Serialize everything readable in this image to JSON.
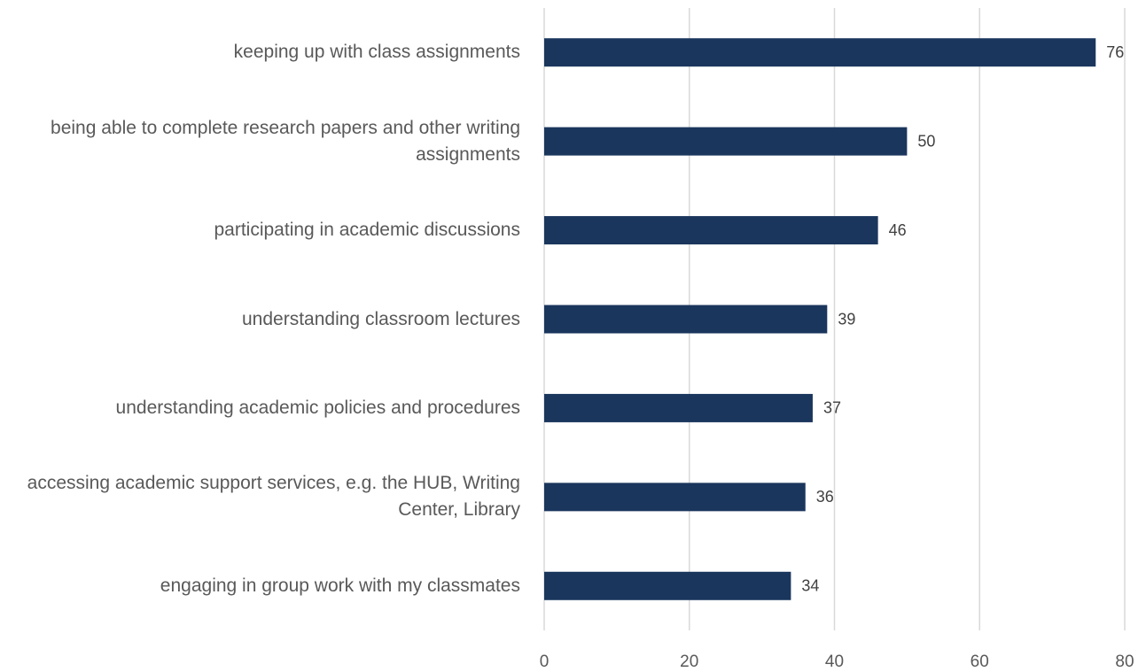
{
  "chart_data": {
    "type": "hbar",
    "categories": [
      "keeping up with class assignments",
      "being able to complete research papers and other writing assignments",
      "participating in academic discussions",
      "understanding classroom lectures",
      "understanding academic policies and procedures",
      "accessing academic support services, e.g. the HUB, Writing Center, Library",
      "engaging in group work with my classmates"
    ],
    "values": [
      76,
      50,
      46,
      39,
      37,
      36,
      34
    ],
    "color": "#1a365d",
    "xlim": [
      0,
      80
    ],
    "xticks": [
      0,
      20,
      40,
      60,
      80
    ],
    "grid": true
  }
}
